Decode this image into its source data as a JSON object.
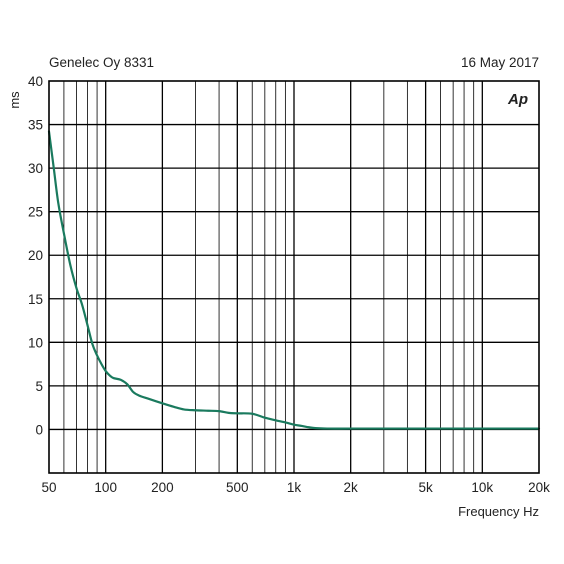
{
  "header": {
    "left_text": "Genelec Oy 8331",
    "right_text": "16 May 2017",
    "logo_text": "Ap"
  },
  "chart_data": {
    "type": "line",
    "x_scale": "log",
    "xlim": [
      50,
      20000
    ],
    "ylim": [
      -5,
      40
    ],
    "xlabel": "Frequency Hz",
    "ylabel": "ms",
    "grid": true,
    "x_ticks": [
      {
        "value": 50,
        "label": "50"
      },
      {
        "value": 100,
        "label": "100"
      },
      {
        "value": 200,
        "label": "200"
      },
      {
        "value": 500,
        "label": "500"
      },
      {
        "value": 1000,
        "label": "1k"
      },
      {
        "value": 2000,
        "label": "2k"
      },
      {
        "value": 5000,
        "label": "5k"
      },
      {
        "value": 10000,
        "label": "10k"
      },
      {
        "value": 20000,
        "label": "20k"
      }
    ],
    "y_ticks": [
      {
        "value": 40,
        "label": "40"
      },
      {
        "value": 35,
        "label": "35"
      },
      {
        "value": 30,
        "label": "30"
      },
      {
        "value": 25,
        "label": "25"
      },
      {
        "value": 20,
        "label": "20"
      },
      {
        "value": 15,
        "label": "15"
      },
      {
        "value": 10,
        "label": "10"
      },
      {
        "value": 5,
        "label": "5"
      },
      {
        "value": 0,
        "label": "0"
      }
    ],
    "series": [
      {
        "color": "#1a7a5e",
        "x": [
          50,
          53,
          56,
          60,
          65,
          70,
          75,
          80,
          85,
          90,
          95,
          100,
          105,
          110,
          120,
          130,
          140,
          150,
          170,
          200,
          230,
          260,
          300,
          350,
          400,
          450,
          500,
          600,
          700,
          800,
          900,
          1000,
          1100,
          1200,
          1300,
          1500,
          2000,
          3000,
          5000,
          10000,
          20000
        ],
        "y": [
          34.2,
          30,
          26,
          22.5,
          18.8,
          16.2,
          14.3,
          12.0,
          9.8,
          8.5,
          7.5,
          6.7,
          6.2,
          5.9,
          5.7,
          5.2,
          4.3,
          3.9,
          3.5,
          3.0,
          2.6,
          2.3,
          2.2,
          2.15,
          2.1,
          1.9,
          1.85,
          1.8,
          1.35,
          1.05,
          0.8,
          0.55,
          0.4,
          0.25,
          0.15,
          0.1,
          0.1,
          0.1,
          0.1,
          0.1,
          0.1
        ]
      }
    ]
  }
}
